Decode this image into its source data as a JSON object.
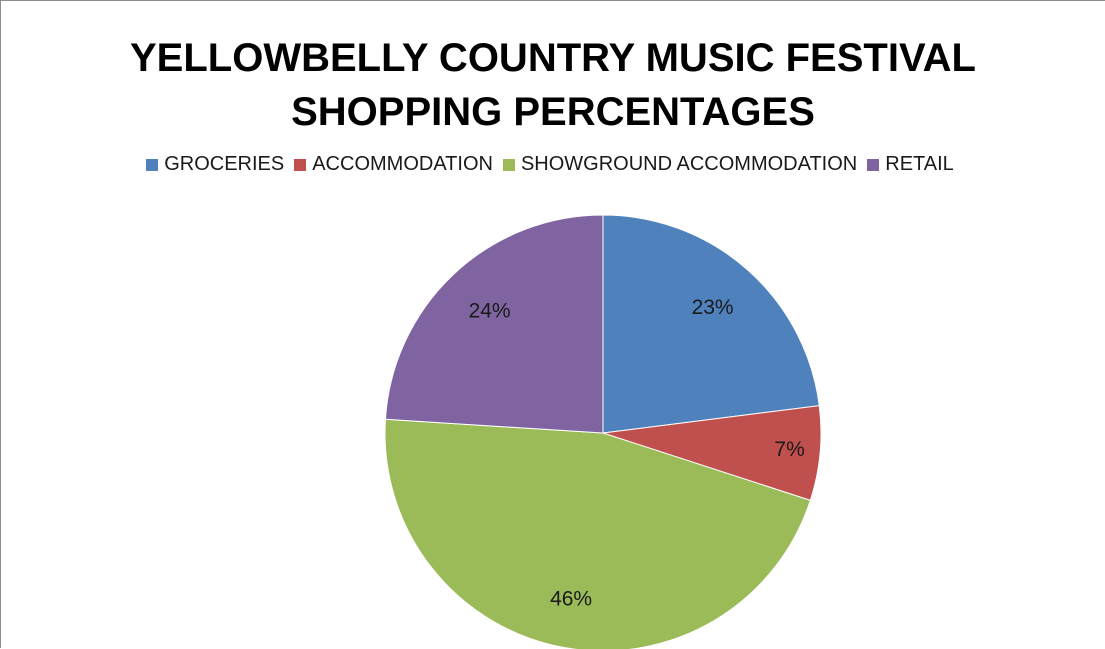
{
  "chart_data": {
    "type": "pie",
    "title": "YELLOWBELLY COUNTRY MUSIC FESTIVAL SHOPPING PERCENTAGES",
    "title_lines": [
      "YELLOWBELLY COUNTRY MUSIC FESTIVAL",
      "SHOPPING PERCENTAGES"
    ],
    "legend_position": "top",
    "categories": [
      "GROCERIES",
      "ACCOMMODATION",
      "SHOWGROUND ACCOMMODATION",
      "RETAIL"
    ],
    "values": [
      23,
      7,
      46,
      24
    ],
    "labels": [
      "23%",
      "7%",
      "46%",
      "24%"
    ],
    "colors": [
      "#4f81bd",
      "#c0504d",
      "#9bbb59",
      "#8064a2"
    ]
  }
}
